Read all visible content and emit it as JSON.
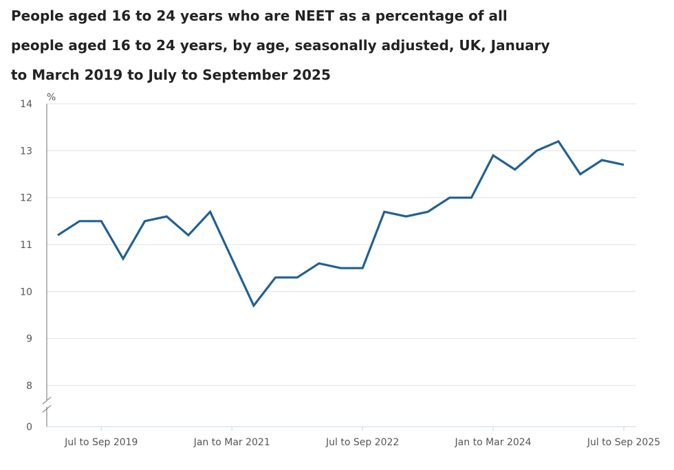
{
  "chart_data": {
    "type": "line",
    "title": "People aged 16 to 24 years who are NEET as a percentage of all people aged 16 to 24 years, by age, seasonally adjusted, UK, January to March 2019 to July to September 2025",
    "ylabel": "%",
    "xlabel": "",
    "ylim": [
      8,
      14
    ],
    "y_axis_break": true,
    "y_ticks": [
      "14",
      "13",
      "12",
      "11",
      "10",
      "9",
      "8",
      "0"
    ],
    "y_tick_values": [
      14,
      13,
      12,
      11,
      10,
      9,
      8
    ],
    "x_tick_labels": [
      "Jul to Sep 2019",
      "Jan to Mar 2021",
      "Jul to Sep 2022",
      "Jan to Mar 2024",
      "Jul to Sep 2025"
    ],
    "x_tick_indices": [
      2,
      8,
      14,
      20,
      26
    ],
    "x": [
      "Jan to Mar 2019",
      "Apr to Jun 2019",
      "Jul to Sep 2019",
      "Oct to Dec 2019",
      "Jan to Mar 2020",
      "Apr to Jun 2020",
      "Jul to Sep 2020",
      "Oct to Dec 2020",
      "Jan to Mar 2021",
      "Apr to Jun 2021",
      "Jul to Sep 2021",
      "Oct to Dec 2021",
      "Jan to Mar 2022",
      "Apr to Jun 2022",
      "Jul to Sep 2022",
      "Oct to Dec 2022",
      "Jan to Mar 2023",
      "Apr to Jun 2023",
      "Jul to Sep 2023",
      "Oct to Dec 2023",
      "Jan to Mar 2024",
      "Apr to Jun 2024",
      "Jul to Sep 2024",
      "Oct to Dec 2024",
      "Jan to Mar 2025",
      "Apr to Jun 2025",
      "Jul to Sep 2025"
    ],
    "series": [
      {
        "values": [
          11.2,
          11.5,
          11.5,
          10.7,
          11.5,
          11.6,
          11.2,
          11.7,
          10.7,
          9.7,
          10.3,
          10.3,
          10.6,
          10.5,
          10.5,
          11.7,
          11.6,
          11.7,
          12.0,
          12.0,
          12.9,
          12.6,
          13.0,
          13.2,
          12.5,
          12.8,
          12.7
        ],
        "color": "#206095"
      }
    ],
    "grid": true,
    "legend": "none"
  }
}
